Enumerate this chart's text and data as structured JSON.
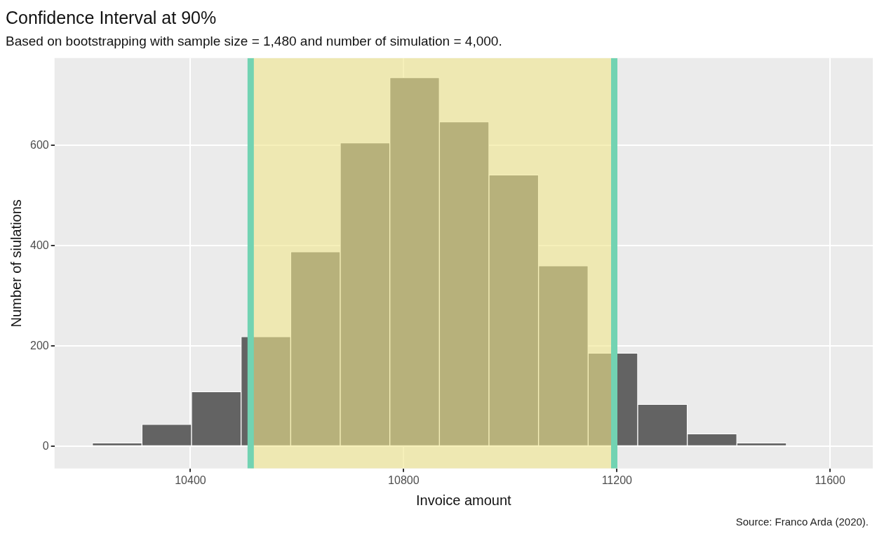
{
  "chart_data": {
    "type": "histogram",
    "title": "Confidence Interval at 90%",
    "subtitle": "Based on bootstrapping with sample size = 1,480 and number of simulation = 4,000.",
    "xlabel": "Invoice amount",
    "ylabel": "Number of siulations",
    "annotations": [
      "Source: Franco Arda (2020)."
    ],
    "bins": [
      10216,
      10309,
      10402,
      10495,
      10588,
      10681,
      10774,
      10867,
      10960,
      11053,
      11146,
      11239,
      11332,
      11425,
      11518
    ],
    "values": [
      7,
      44,
      109,
      219,
      388,
      605,
      735,
      647,
      541,
      360,
      186,
      84,
      25,
      7
    ],
    "color": "#636363",
    "xlim": [
      10145,
      11680
    ],
    "xticks": [
      10400,
      10800,
      11200,
      11600
    ],
    "ylim": [
      -44,
      774
    ],
    "yticks": [
      0,
      200,
      400,
      600
    ],
    "grid": true,
    "bands": [
      {
        "axis": "x",
        "from": 10513,
        "to": 11195,
        "color": "#f0e68c"
      }
    ],
    "ref_lines": [
      {
        "axis": "x",
        "value": 10513,
        "color": "#72d3b2"
      },
      {
        "axis": "x",
        "value": 11195,
        "color": "#72d3b2"
      }
    ]
  }
}
